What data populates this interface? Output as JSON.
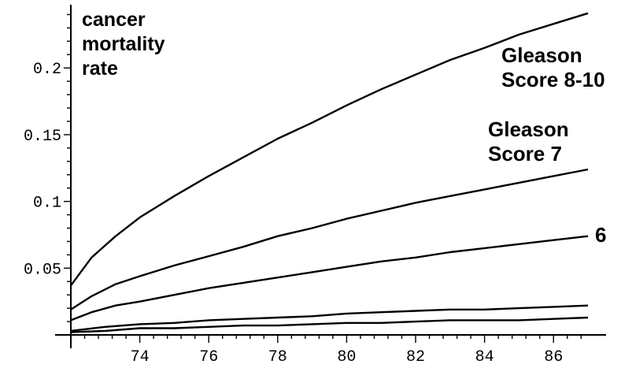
{
  "chart_data": {
    "type": "line",
    "title": "",
    "xlabel": "",
    "ylabel_lines": [
      "cancer",
      "mortality",
      "rate"
    ],
    "xlim": [
      72,
      87
    ],
    "ylim": [
      0,
      0.245
    ],
    "x_ticks": [
      74,
      76,
      78,
      80,
      82,
      84,
      86
    ],
    "y_ticks": [
      0.05,
      0.1,
      0.15,
      0.2
    ],
    "x_tick_labels": [
      "74",
      "76",
      "78",
      "80",
      "82",
      "84",
      "86"
    ],
    "y_tick_labels": [
      "0.05",
      "0.1",
      "0.15",
      "0.2"
    ],
    "grid": false,
    "series": [
      {
        "x": [
          72,
          72.6,
          73.3,
          74,
          75,
          76,
          77,
          78,
          79,
          80,
          81,
          82,
          83,
          84,
          85,
          86,
          87
        ],
        "values": [
          0.037,
          0.058,
          0.074,
          0.088,
          0.104,
          0.119,
          0.133,
          0.147,
          0.159,
          0.172,
          0.184,
          0.195,
          0.206,
          0.215,
          0.225,
          0.233,
          0.241
        ]
      },
      {
        "x": [
          72,
          72.6,
          73.3,
          74,
          75,
          76,
          77,
          78,
          79,
          80,
          81,
          82,
          83,
          84,
          85,
          86,
          87
        ],
        "values": [
          0.019,
          0.029,
          0.038,
          0.044,
          0.052,
          0.059,
          0.066,
          0.074,
          0.08,
          0.087,
          0.093,
          0.099,
          0.104,
          0.109,
          0.114,
          0.119,
          0.124
        ]
      },
      {
        "x": [
          72,
          72.6,
          73.3,
          74,
          75,
          76,
          77,
          78,
          79,
          80,
          81,
          82,
          83,
          84,
          85,
          86,
          87
        ],
        "values": [
          0.011,
          0.017,
          0.022,
          0.025,
          0.03,
          0.035,
          0.039,
          0.043,
          0.047,
          0.051,
          0.055,
          0.058,
          0.062,
          0.065,
          0.068,
          0.071,
          0.074
        ]
      },
      {
        "x": [
          72,
          73,
          74,
          75,
          76,
          77,
          78,
          79,
          80,
          81,
          82,
          83,
          84,
          85,
          86,
          87
        ],
        "values": [
          0.003,
          0.006,
          0.008,
          0.009,
          0.011,
          0.012,
          0.013,
          0.014,
          0.016,
          0.017,
          0.018,
          0.019,
          0.019,
          0.02,
          0.021,
          0.022
        ]
      },
      {
        "x": [
          72,
          73,
          74,
          75,
          76,
          77,
          78,
          79,
          80,
          81,
          82,
          83,
          84,
          85,
          86,
          87
        ],
        "values": [
          0.002,
          0.003,
          0.005,
          0.005,
          0.006,
          0.007,
          0.007,
          0.008,
          0.009,
          0.009,
          0.01,
          0.011,
          0.011,
          0.011,
          0.012,
          0.013
        ]
      }
    ],
    "annotations": [
      {
        "lines": [
          "Gleason",
          "Score 8-10"
        ]
      },
      {
        "lines": [
          "Gleason",
          "Score 7"
        ]
      },
      {
        "lines": [
          "6"
        ]
      }
    ]
  }
}
